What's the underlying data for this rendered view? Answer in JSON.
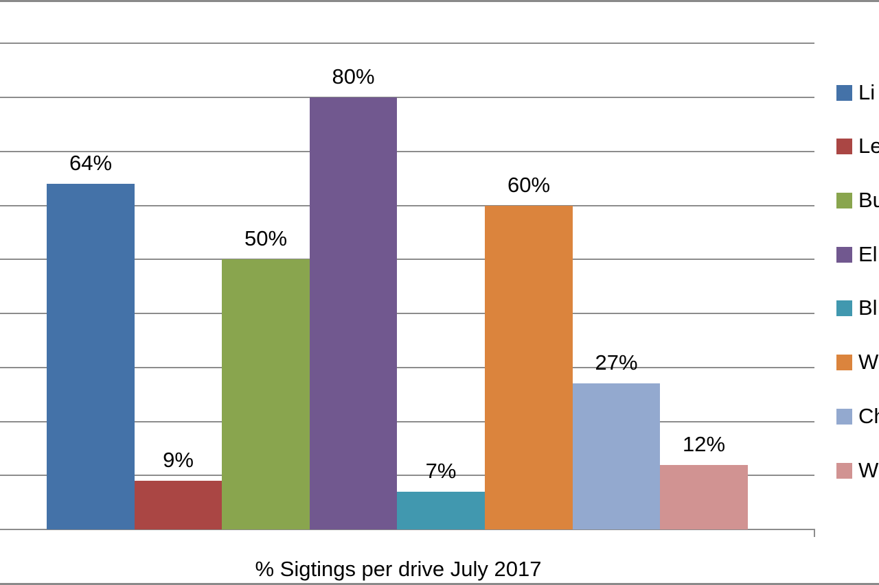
{
  "chart_data": {
    "type": "bar",
    "title": "",
    "xlabel": "% Sigtings per drive July 2017",
    "ylabel": "",
    "ylim": [
      0,
      90
    ],
    "grid": true,
    "legend_position": "right",
    "categories": [
      "% Sigtings per drive July 2017"
    ],
    "series": [
      {
        "name": "Li",
        "values": [
          64
        ],
        "label": "64%",
        "color": "#4472a8"
      },
      {
        "name": "Le",
        "values": [
          9
        ],
        "label": "9%",
        "color": "#aa4644"
      },
      {
        "name": "Bu",
        "values": [
          50
        ],
        "label": "50%",
        "color": "#89a54e"
      },
      {
        "name": "El",
        "values": [
          80
        ],
        "label": "80%",
        "color": "#71588f"
      },
      {
        "name": "Bl",
        "values": [
          7
        ],
        "label": "7%",
        "color": "#4198af"
      },
      {
        "name": "W",
        "values": [
          60
        ],
        "label": "60%",
        "color": "#db843d"
      },
      {
        "name": "Ch",
        "values": [
          27
        ],
        "label": "27%",
        "color": "#93a9cf"
      },
      {
        "name": "W",
        "values": [
          12
        ],
        "label": "12%",
        "color": "#d19392"
      }
    ]
  },
  "x_axis": {
    "title": "% Sigtings per drive July 2017"
  },
  "legend": {
    "items": [
      {
        "label": "Li",
        "color": "#4472a8"
      },
      {
        "label": "Le",
        "color": "#aa4644"
      },
      {
        "label": "Bu",
        "color": "#89a54e"
      },
      {
        "label": "El",
        "color": "#71588f"
      },
      {
        "label": "Bl",
        "color": "#4198af"
      },
      {
        "label": "W",
        "color": "#db843d"
      },
      {
        "label": "Ch",
        "color": "#93a9cf"
      },
      {
        "label": "W",
        "color": "#d19392"
      }
    ]
  },
  "bars": [
    {
      "label": "64%",
      "color": "#4472a8"
    },
    {
      "label": "9%",
      "color": "#aa4644"
    },
    {
      "label": "50%",
      "color": "#89a54e"
    },
    {
      "label": "80%",
      "color": "#71588f"
    },
    {
      "label": "7%",
      "color": "#4198af"
    },
    {
      "label": "60%",
      "color": "#db843d"
    },
    {
      "label": "27%",
      "color": "#93a9cf"
    },
    {
      "label": "12%",
      "color": "#d19392"
    }
  ]
}
